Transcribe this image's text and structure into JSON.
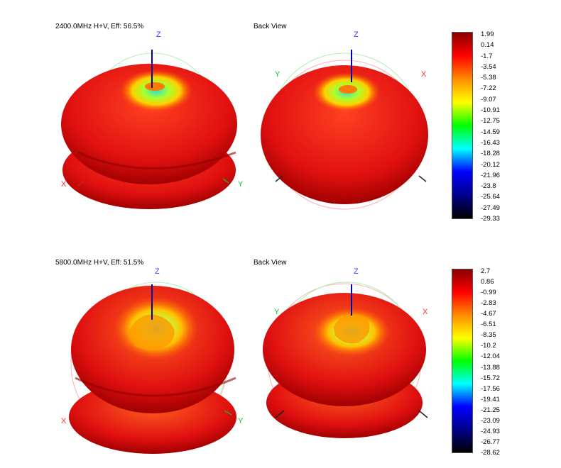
{
  "chart_data": [
    {
      "type": "heatmap",
      "title": "2400.0MHz H+V, Eff: 56.5%",
      "back_view_label": "Back View",
      "axis_labels": {
        "z": "Z",
        "x": "X",
        "y": "Y"
      },
      "colorbar_ticks": [
        "1.99",
        "0.14",
        "-1.7",
        "-3.54",
        "-5.38",
        "-7.22",
        "-9.07",
        "-10.91",
        "-12.75",
        "-14.59",
        "-16.43",
        "-18.28",
        "-20.12",
        "-21.96",
        "-23.8",
        "-25.64",
        "-27.49",
        "-29.33"
      ],
      "range": [
        -29.33,
        1.99
      ],
      "colormap": [
        "#8b0000",
        "#ff0000",
        "#ff8c00",
        "#ffff00",
        "#00ff00",
        "#00ffff",
        "#0000ff",
        "#00008b",
        "#000000"
      ]
    },
    {
      "type": "heatmap",
      "title": "5800.0MHz H+V, Eff: 51.5%",
      "back_view_label": "Back View",
      "axis_labels": {
        "z": "Z",
        "x": "X",
        "y": "Y"
      },
      "colorbar_ticks": [
        "2.7",
        "0.86",
        "-0.99",
        "-2.83",
        "-4.67",
        "-6.51",
        "-8.35",
        "-10.2",
        "-12.04",
        "-13.88",
        "-15.72",
        "-17.56",
        "-19.41",
        "-21.25",
        "-23.09",
        "-24.93",
        "-26.77",
        "-28.62"
      ],
      "range": [
        -28.62,
        2.7
      ],
      "colormap": [
        "#8b0000",
        "#ff0000",
        "#ff8c00",
        "#ffff00",
        "#00ff00",
        "#00ffff",
        "#0000ff",
        "#00008b",
        "#000000"
      ]
    }
  ]
}
